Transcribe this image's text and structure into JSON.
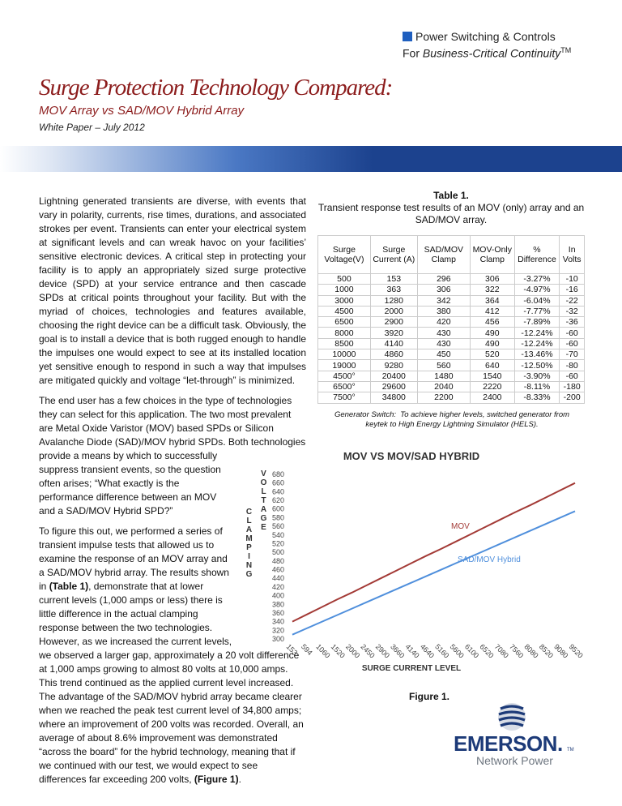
{
  "header": {
    "division": "Power Switching & Controls",
    "tagline": "For ",
    "tagline_italic": "Business-Critical Continuity",
    "trademark": "TM"
  },
  "title": "Surge Protection Technology Compared:",
  "subtitle": "MOV Array vs SAD/MOV Hybrid Array",
  "date": "White Paper – July 2012",
  "body": {
    "paragraphs": [
      [
        {
          "text": "Lightning generated transients are diverse, with events that vary in polarity, currents, rise times, durations, and associated strokes per event. Transients can enter your electrical system at significant levels and can wreak havoc on your facilities’ sensitive electronic devices. A critical step in protecting your facility is to apply an appropriately sized surge protective device (SPD) at your service entrance and then cascade SPDs at critical points throughout your facility. But with the myriad of choices, technologies and features available, choosing the right device can be a difficult task. Obviously, the goal is to install a device that is both rugged enough to handle the impulses one would expect to see at its installed location yet sensitive enough to respond in such a way that impulses are mitigated quickly and voltage “let-through” is minimized.",
          "bold": false
        }
      ],
      [
        {
          "text": "The end user has a few choices in the type of technologies they can select for this application. The two most prevalent are Metal Oxide Varistor (MOV) based SPDs or Silicon Avalanche Diode (SAD)/MOV hybrid SPDs.  Both technologies provide a means by which to successfully suppress transient events, so the question often arises; “What exactly is the performance difference between an MOV and a SAD/MOV Hybrid SPD?”",
          "bold": false
        }
      ],
      [
        {
          "text": "To figure this out, we performed a series of transient impulse tests that allowed us to examine the response of an MOV array and a SAD/MOV hybrid array.  The results shown in ",
          "bold": false
        },
        {
          "text": "(Table 1)",
          "bold": true
        },
        {
          "text": ", demonstrate that at lower current levels (1,000 amps or less) there is little difference in the actual clamping response between the two technologies.  However, as we increased the current levels, we observed a larger gap, approximately a 20 volt difference at 1,000 amps growing to almost 80 volts at 10,000 amps.  This trend continued as the applied current level increased.  The advantage of the SAD/MOV hybrid array became clearer when we reached the peak test current level of 34,800 amps; where an improvement of 200 volts was recorded.  Overall, an average of about 8.6% improvement was demonstrated “across the board” for the hybrid technology, meaning that if we continued with our test, we would expect to see differences far exceeding 200 volts, ",
          "bold": false
        },
        {
          "text": "(Figure 1)",
          "bold": true
        },
        {
          "text": ".",
          "bold": false
        }
      ]
    ]
  },
  "table": {
    "caption_label": "Table 1.",
    "caption": "Transient response test results of an MOV (only) array and an SAD/MOV array.",
    "columns": [
      "Surge Voltage(V)",
      "Surge Current (A)",
      "SAD/MOV Clamp",
      "MOV-Only Clamp",
      "% Difference",
      "In Volts"
    ],
    "rows": [
      [
        "500",
        "153",
        "296",
        "306",
        "-3.27%",
        "-10"
      ],
      [
        "1000",
        "363",
        "306",
        "322",
        "-4.97%",
        "-16"
      ],
      [
        "3000",
        "1280",
        "342",
        "364",
        "-6.04%",
        "-22"
      ],
      [
        "4500",
        "2000",
        "380",
        "412",
        "-7.77%",
        "-32"
      ],
      [
        "6500",
        "2900",
        "420",
        "456",
        "-7.89%",
        "-36"
      ],
      [
        "8000",
        "3920",
        "430",
        "490",
        "-12.24%",
        "-60"
      ],
      [
        "8500",
        "4140",
        "430",
        "490",
        "-12.24%",
        "-60"
      ],
      [
        "10000",
        "4860",
        "450",
        "520",
        "-13.46%",
        "-70"
      ],
      [
        "19000",
        "9280",
        "560",
        "640",
        "-12.50%",
        "-80"
      ],
      [
        "4500°",
        "20400",
        "1480",
        "1540",
        "-3.90%",
        "-60"
      ],
      [
        "6500°",
        "29600",
        "2040",
        "2220",
        "-8.11%",
        "-180"
      ],
      [
        "7500°",
        "34800",
        "2200",
        "2400",
        "-8.33%",
        "-200"
      ]
    ]
  },
  "table_note": {
    "label": "Generator Switch:",
    "text": "To achieve higher levels, switched generator from keytek to High Energy Lightning Simulator (HELS)."
  },
  "chart_data": {
    "type": "line",
    "title": "MOV VS MOV/SAD HYBRID",
    "x_label": "SURGE CURRENT LEVEL",
    "y_label_lines": [
      "CLAMPING",
      "VOLTAGE"
    ],
    "categories": [
      "153",
      "594",
      "1060",
      "1520",
      "2000",
      "2450",
      "2900",
      "3660",
      "4140",
      "4640",
      "5160",
      "5600",
      "6100",
      "6520",
      "7080",
      "7560",
      "8080",
      "8520",
      "9080",
      "9520"
    ],
    "series": [
      {
        "name": "MOV",
        "color": "#a33a36",
        "values": [
          340,
          357,
          374,
          391,
          407,
          424,
          441,
          458,
          475,
          492,
          508,
          525,
          542,
          559,
          576,
          593,
          609,
          626,
          643,
          660
        ]
      },
      {
        "name": "SAD/MOV Hybrid",
        "color": "#4f8fdc",
        "values": [
          310,
          325,
          340,
          355,
          370,
          385,
          400,
          415,
          430,
          445,
          460,
          475,
          490,
          505,
          520,
          535,
          550,
          565,
          580,
          595
        ]
      }
    ],
    "ylim": [
      300,
      680
    ],
    "yticks": [
      300,
      320,
      340,
      360,
      380,
      400,
      420,
      440,
      460,
      480,
      500,
      520,
      540,
      560,
      580,
      600,
      620,
      640,
      660,
      680
    ],
    "grid": false
  },
  "figure_caption": "Figure 1.",
  "logo": {
    "brand": "EMERSON.",
    "trademark": "TM",
    "division": "Network Power"
  }
}
